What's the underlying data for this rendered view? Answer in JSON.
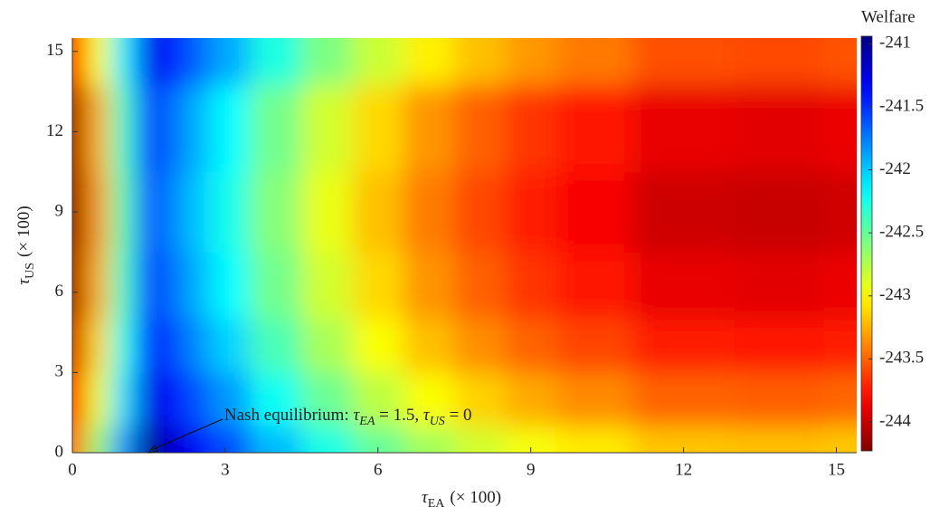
{
  "chart_data": {
    "type": "contour",
    "xlabel": {
      "symbol": "τ",
      "subscript": "EA",
      "text": "(× 100)"
    },
    "ylabel": {
      "symbol": "τ",
      "subscript": "US",
      "text": "(× 100)"
    },
    "colorbar_title": "Welfare",
    "colormap": "jet_r",
    "clim": [
      -244.23,
      -240.94
    ],
    "cticks": [
      -241,
      -241.5,
      -242,
      -242.5,
      -243,
      -243.5,
      -244
    ],
    "xlim": [
      0,
      15.4
    ],
    "ylim": [
      0,
      15.5
    ],
    "xticks": [
      0,
      3,
      6,
      9,
      12,
      15
    ],
    "yticks": [
      0,
      3,
      6,
      9,
      12,
      15
    ],
    "x": [
      0,
      0.5,
      1,
      1.5,
      2,
      2.5,
      3,
      4,
      5,
      6,
      7,
      8,
      9,
      10,
      12,
      14,
      15.5
    ],
    "y": [
      0,
      2,
      4,
      6,
      9,
      12,
      15.5
    ],
    "z": [
      [
        -243.5,
        -242.67,
        -241.83,
        -241,
        -241.2,
        -241.4,
        -241.6,
        -241.95,
        -242.25,
        -242.5,
        -242.7,
        -242.85,
        -242.97,
        -243.06,
        -243.18,
        -243.2,
        -243.17
      ],
      [
        -243.78,
        -242.93,
        -242.07,
        -241.24,
        -241.44,
        -241.64,
        -241.85,
        -242.21,
        -242.52,
        -242.78,
        -242.98,
        -243.14,
        -243.27,
        -243.37,
        -243.5,
        -243.52,
        -243.49
      ],
      [
        -243.98,
        -243.12,
        -242.24,
        -241.41,
        -241.61,
        -241.83,
        -242.04,
        -242.41,
        -242.72,
        -242.98,
        -243.2,
        -243.36,
        -243.5,
        -243.6,
        -243.73,
        -243.75,
        -243.72
      ],
      [
        -244.12,
        -243.25,
        -242.36,
        -241.53,
        -241.73,
        -241.95,
        -242.17,
        -242.54,
        -242.85,
        -243.12,
        -243.34,
        -243.51,
        -243.65,
        -243.75,
        -243.89,
        -243.91,
        -243.88
      ],
      [
        -244.2,
        -243.32,
        -242.43,
        -241.6,
        -241.8,
        -242.02,
        -242.24,
        -242.61,
        -242.93,
        -243.2,
        -243.42,
        -243.59,
        -243.73,
        -243.84,
        -243.98,
        -244,
        -243.97
      ],
      [
        -244.12,
        -243.25,
        -242.36,
        -241.53,
        -241.73,
        -241.95,
        -242.17,
        -242.54,
        -242.85,
        -243.12,
        -243.34,
        -243.51,
        -243.65,
        -243.75,
        -243.89,
        -243.91,
        -243.88
      ],
      [
        -243.83,
        -242.98,
        -242.12,
        -241.29,
        -241.49,
        -241.7,
        -241.91,
        -242.27,
        -242.58,
        -242.83,
        -243.04,
        -243.2,
        -243.33,
        -243.43,
        -243.56,
        -243.58,
        -243.55
      ]
    ],
    "annotation": {
      "point": [
        1.5,
        0
      ],
      "parts": [
        {
          "text": "Nash equilibrium: "
        },
        {
          "symbol": "τ",
          "subscript": "EA"
        },
        {
          "text": " = 1.5, "
        },
        {
          "symbol": "τ",
          "subscript": "US"
        },
        {
          "text": " = 0"
        }
      ]
    }
  }
}
